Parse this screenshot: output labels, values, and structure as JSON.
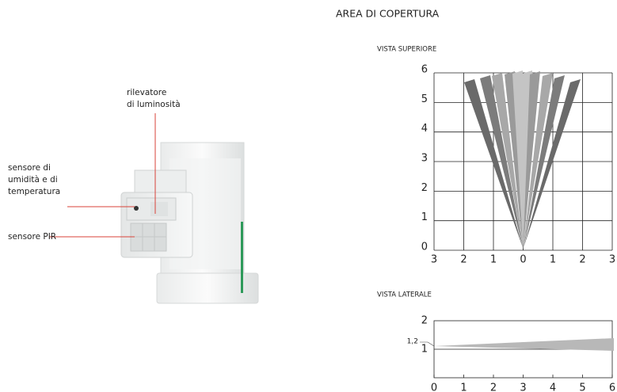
{
  "callouts": {
    "light_sensor": [
      "rilevatore",
      "di luminosità"
    ],
    "humidity_sensor": [
      "sensore di",
      "umidità e di",
      "temperatura"
    ],
    "pir_sensor": [
      "sensore PIR"
    ]
  },
  "coverage": {
    "title": "AREA DI COPERTURA",
    "top_view": {
      "title": "VISTA SUPERIORE",
      "x_ticks": [
        "3",
        "2",
        "1",
        "0",
        "1",
        "2",
        "3"
      ],
      "y_ticks": [
        "0",
        "1",
        "2",
        "3",
        "4",
        "5",
        "6"
      ]
    },
    "side_view": {
      "title": "VISTA LATERALE",
      "x_ticks": [
        "0",
        "1",
        "2",
        "3",
        "4",
        "5",
        "6"
      ],
      "y_ticks": [
        "1",
        "2"
      ],
      "height_note": "1,2"
    }
  }
}
